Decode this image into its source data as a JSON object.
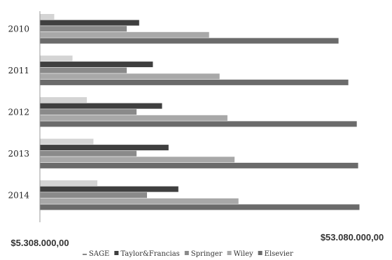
{
  "chart_data": {
    "type": "bar",
    "orientation": "horizontal",
    "categories": [
      "2010",
      "2011",
      "2012",
      "2013",
      "2014"
    ],
    "series": [
      {
        "name": "SAGE",
        "color": "#d4d4d4",
        "values": [
          7500000,
          10300000,
          12500000,
          13500000,
          14100000
        ]
      },
      {
        "name": "Taylor&Francias",
        "color": "#3f3f3f",
        "values": [
          20500000,
          22600000,
          24000000,
          25000000,
          26500000
        ]
      },
      {
        "name": "Springer",
        "color": "#8a8a8a",
        "values": [
          18600000,
          18600000,
          20100000,
          20100000,
          21700000
        ]
      },
      {
        "name": "Wiley",
        "color": "#a8a8a8",
        "values": [
          31200000,
          32800000,
          34000000,
          35100000,
          35700000
        ]
      },
      {
        "name": "Elsevier",
        "color": "#6b6b6b",
        "values": [
          51000000,
          52500000,
          53800000,
          54000000,
          54200000
        ]
      }
    ],
    "xlim": [
      5308000,
      53080000
    ],
    "xtick_labels": [
      "$5.308.000,00",
      "$53.080.000,00"
    ],
    "legend_position": "bottom",
    "grid": false
  }
}
